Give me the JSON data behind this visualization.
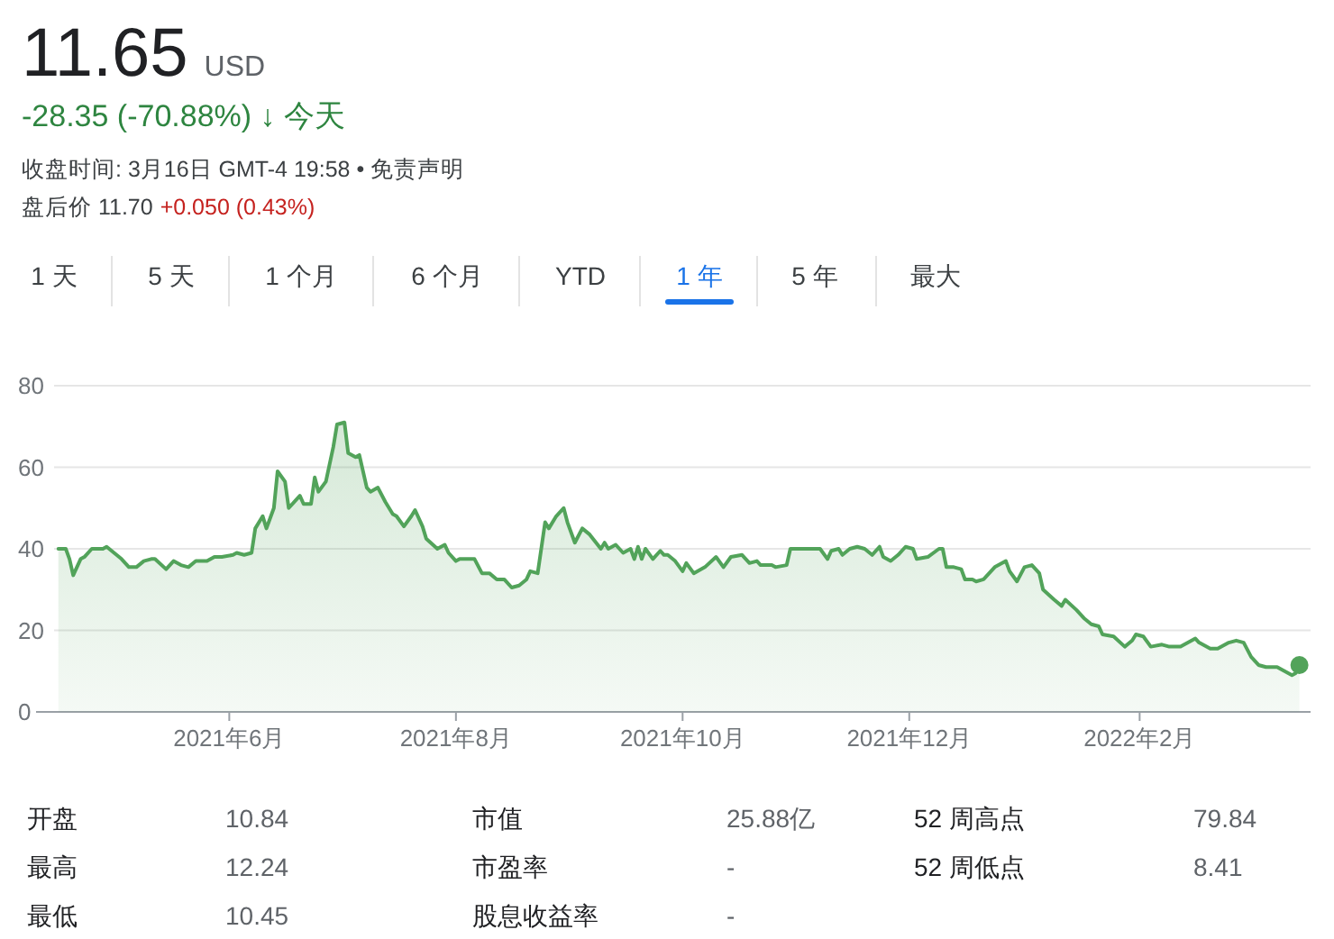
{
  "chart_data": {
    "type": "area",
    "title": "11.65",
    "subtitle": "USD",
    "x": [
      "2021-04-16",
      "2021-04-18",
      "2021-04-19",
      "2021-04-20",
      "2021-04-22",
      "2021-04-23",
      "2021-04-25",
      "2021-04-26",
      "2021-04-28",
      "2021-04-29",
      "2021-05-01",
      "2021-05-03",
      "2021-05-05",
      "2021-05-07",
      "2021-05-09",
      "2021-05-11",
      "2021-05-12",
      "2021-05-15",
      "2021-05-17",
      "2021-05-19",
      "2021-05-21",
      "2021-05-23",
      "2021-05-26",
      "2021-05-28",
      "2021-05-30",
      "2021-06-02",
      "2021-06-03",
      "2021-06-05",
      "2021-06-07",
      "2021-06-08",
      "2021-06-10",
      "2021-06-11",
      "2021-06-13",
      "2021-06-14",
      "2021-06-16",
      "2021-06-17",
      "2021-06-19",
      "2021-06-20",
      "2021-06-21",
      "2021-06-23",
      "2021-06-24",
      "2021-06-25",
      "2021-06-27",
      "2021-06-29",
      "2021-06-30",
      "2021-07-02",
      "2021-07-03",
      "2021-07-05",
      "2021-07-06",
      "2021-07-08",
      "2021-07-09",
      "2021-07-11",
      "2021-07-13",
      "2021-07-15",
      "2021-07-16",
      "2021-07-18",
      "2021-07-20",
      "2021-07-21",
      "2021-07-23",
      "2021-07-24",
      "2021-07-27",
      "2021-07-29",
      "2021-07-30",
      "2021-08-01",
      "2021-08-02",
      "2021-08-06",
      "2021-08-08",
      "2021-08-10",
      "2021-08-12",
      "2021-08-14",
      "2021-08-16",
      "2021-08-18",
      "2021-08-20",
      "2021-08-21",
      "2021-08-23",
      "2021-08-25",
      "2021-08-26",
      "2021-08-28",
      "2021-08-30",
      "2021-08-31",
      "2021-09-02",
      "2021-09-04",
      "2021-09-06",
      "2021-09-09",
      "2021-09-10",
      "2021-09-11",
      "2021-09-13",
      "2021-09-15",
      "2021-09-17",
      "2021-09-18",
      "2021-09-19",
      "2021-09-20",
      "2021-09-21",
      "2021-09-23",
      "2021-09-25",
      "2021-09-26",
      "2021-09-27",
      "2021-09-29",
      "2021-10-01",
      "2021-10-02",
      "2021-10-04",
      "2021-10-07",
      "2021-10-10",
      "2021-10-12",
      "2021-10-14",
      "2021-10-17",
      "2021-10-19",
      "2021-10-21",
      "2021-10-22",
      "2021-10-25",
      "2021-10-26",
      "2021-10-29",
      "2021-10-30",
      "2021-11-01",
      "2021-11-03",
      "2021-11-05",
      "2021-11-07",
      "2021-11-09",
      "2021-11-10",
      "2021-11-12",
      "2021-11-13",
      "2021-11-15",
      "2021-11-17",
      "2021-11-19",
      "2021-11-21",
      "2021-11-23",
      "2021-11-24",
      "2021-11-26",
      "2021-11-28",
      "2021-11-30",
      "2021-12-02",
      "2021-12-03",
      "2021-12-06",
      "2021-12-09",
      "2021-12-10",
      "2021-12-11",
      "2021-12-13",
      "2021-12-15",
      "2021-12-16",
      "2021-12-18",
      "2021-12-19",
      "2021-12-21",
      "2021-12-24",
      "2021-12-27",
      "2021-12-28",
      "2021-12-30",
      "2022-01-01",
      "2022-01-03",
      "2022-01-05",
      "2022-01-06",
      "2022-01-09",
      "2022-01-11",
      "2022-01-12",
      "2022-01-15",
      "2022-01-17",
      "2022-01-19",
      "2022-01-21",
      "2022-01-22",
      "2022-01-25",
      "2022-01-28",
      "2022-01-30",
      "2022-01-31",
      "2022-02-02",
      "2022-02-04",
      "2022-02-07",
      "2022-02-09",
      "2022-02-12",
      "2022-02-13",
      "2022-02-16",
      "2022-02-17",
      "2022-02-20",
      "2022-02-22",
      "2022-02-25",
      "2022-02-27",
      "2022-03-01",
      "2022-03-03",
      "2022-03-05",
      "2022-03-07",
      "2022-03-10",
      "2022-03-12",
      "2022-03-14",
      "2022-03-15",
      "2022-03-16"
    ],
    "series": [
      {
        "color": "#52a35a",
        "values": [
          40,
          40,
          37.5,
          33.5,
          37.5,
          38,
          40,
          40,
          40,
          40.5,
          39,
          37.5,
          35.5,
          35.5,
          37,
          37.5,
          37.5,
          35,
          37,
          36,
          35.5,
          37,
          37,
          38,
          38,
          38.5,
          39,
          38.5,
          39,
          45,
          48,
          45,
          50,
          59,
          56.5,
          50,
          52,
          53,
          51,
          51,
          57.5,
          54,
          56.5,
          65,
          70.5,
          71,
          63.5,
          62.5,
          63,
          55,
          54,
          55,
          51.5,
          48.5,
          48,
          45.5,
          48,
          49.5,
          45.5,
          42.5,
          40,
          41,
          39,
          37,
          37.5,
          37.5,
          34,
          34,
          32.5,
          32.5,
          30.5,
          31,
          32.5,
          34.5,
          34,
          46.5,
          45,
          48,
          50,
          46.5,
          41.5,
          45,
          43.5,
          40,
          41.5,
          40,
          41,
          39,
          40,
          37.5,
          40.5,
          37.5,
          40,
          37.5,
          39.5,
          38.5,
          38.5,
          37,
          34.5,
          36.5,
          34,
          35.5,
          38,
          35.5,
          38,
          38.5,
          36.5,
          37,
          36,
          36,
          35.5,
          36,
          40,
          40,
          40,
          40,
          40,
          37.5,
          39.5,
          40,
          38.5,
          40,
          40.5,
          40,
          38.5,
          40.5,
          38,
          37,
          38.5,
          40.5,
          40,
          37.5,
          38,
          40,
          40,
          35.5,
          35.5,
          35,
          32.5,
          32.5,
          32,
          32.5,
          35.5,
          37,
          34.5,
          32,
          35.5,
          36,
          34,
          30,
          27.5,
          26,
          27.5,
          25,
          23,
          21.5,
          21,
          19,
          18.5,
          16,
          17.5,
          19,
          18.5,
          16,
          16.5,
          16,
          16,
          16.5,
          18,
          17,
          15.5,
          15.5,
          17,
          17.5,
          17,
          13.5,
          11.5,
          11,
          11,
          10,
          9,
          9.5,
          11.5
        ]
      },
      {
        "type": "scatter",
        "color": "#52a35a",
        "marker": "circle",
        "x": [
          "2022-03-16"
        ],
        "values": [
          11.5
        ]
      }
    ],
    "xlim": [
      "2021-04-10",
      "2022-03-19"
    ],
    "xticks": [
      {
        "value": "2021-06-01",
        "label": "2021年6月"
      },
      {
        "value": "2021-08-01",
        "label": "2021年8月"
      },
      {
        "value": "2021-10-01",
        "label": "2021年10月"
      },
      {
        "value": "2021-12-01",
        "label": "2021年12月"
      },
      {
        "value": "2022-02-01",
        "label": "2022年2月"
      }
    ],
    "ylim": [
      0,
      80
    ],
    "yticks": [
      0,
      20,
      40,
      60,
      80
    ],
    "grid": "y",
    "annotations": [
      "-28.35 (-70.88%) ↓ 今天",
      "收盘时间: 3月16日 GMT-4 19:58 • 免责声明",
      "盘后价 11.70",
      "+0.050 (0.43%)",
      "1 天",
      "5 天",
      "1 个月",
      "6 个月",
      "YTD",
      "1 年",
      "5 年",
      "最大",
      "开盘",
      "10.84",
      "最高",
      "12.24",
      "最低",
      "10.45",
      "市值",
      "25.88亿",
      "市盈率",
      "-",
      "股息收益率",
      "-",
      "52 周高点",
      "79.84",
      "52 周低点",
      "8.41"
    ]
  }
}
